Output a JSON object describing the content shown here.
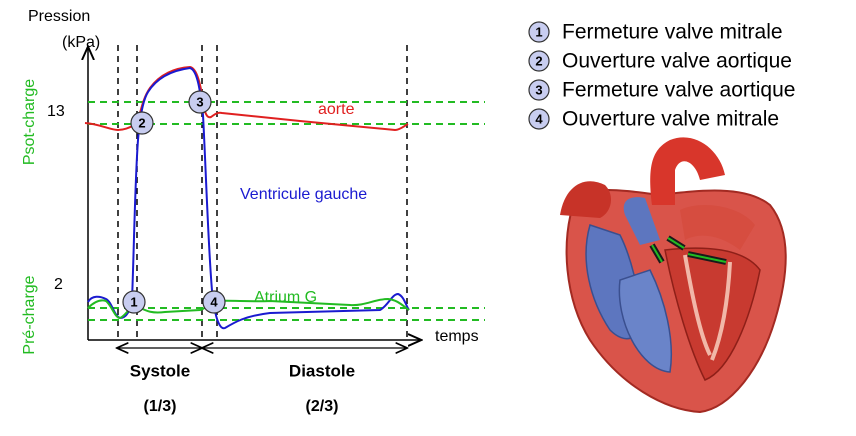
{
  "axis": {
    "y_title": [
      "Pression",
      "(kPa)"
    ],
    "y_labels": [
      "13",
      "2"
    ],
    "x_title": "temps"
  },
  "zones": [
    "Psot-charge",
    "Pré-charge"
  ],
  "curves": [
    "aorte",
    "Ventricule gauche",
    "Atrium G"
  ],
  "phases": [
    {
      "name": "Systole",
      "fraction": "(1/3)"
    },
    {
      "name": "Diastole",
      "fraction": "(2/3)"
    }
  ],
  "legend": [
    {
      "number": "1",
      "label": "Fermeture valve mitrale"
    },
    {
      "number": "2",
      "label": "Ouverture valve aortique"
    },
    {
      "number": "3",
      "label": "Fermeture valve aortique"
    },
    {
      "number": "4",
      "label": "Ouverture valve mitrale"
    }
  ]
}
